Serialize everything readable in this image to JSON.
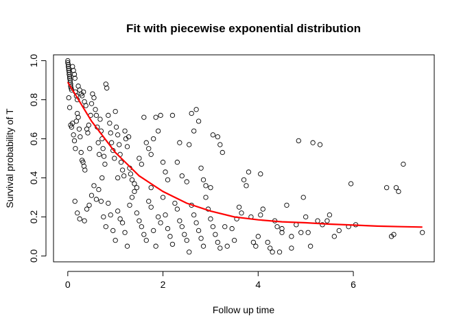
{
  "chart_data": {
    "type": "scatter",
    "title": "Fit with piecewise exponential distribution",
    "xlabel": "Follow up time",
    "ylabel": "Survival probability of T",
    "xlim": [
      -0.3,
      7.7
    ],
    "ylim": [
      -0.03,
      1.03
    ],
    "xticks": [
      0,
      2,
      4,
      6
    ],
    "yticks": [
      0.0,
      0.2,
      0.4,
      0.6,
      0.8,
      1.0
    ],
    "xtick_labels": [
      "0",
      "2",
      "4",
      "6"
    ],
    "ytick_labels": [
      "0.0",
      "0.2",
      "0.4",
      "0.6",
      "0.8",
      "1.0"
    ],
    "grid": false,
    "colors": {
      "points": "#000000",
      "fit_line": "#ff0000"
    },
    "series": [
      {
        "type": "scatter",
        "points": [
          [
            0.0,
            1.0
          ],
          [
            0.0,
            0.99
          ],
          [
            0.01,
            0.98
          ],
          [
            0.01,
            0.97
          ],
          [
            0.02,
            0.96
          ],
          [
            0.02,
            0.95
          ],
          [
            0.03,
            0.94
          ],
          [
            0.03,
            0.93
          ],
          [
            0.04,
            0.92
          ],
          [
            0.04,
            0.91
          ],
          [
            0.05,
            0.9
          ],
          [
            0.05,
            0.89
          ],
          [
            0.06,
            0.88
          ],
          [
            0.06,
            0.87
          ],
          [
            0.07,
            0.86
          ],
          [
            0.08,
            0.85
          ],
          [
            0.1,
            0.97
          ],
          [
            0.12,
            0.95
          ],
          [
            0.14,
            0.93
          ],
          [
            0.15,
            0.91
          ],
          [
            0.16,
            0.84
          ],
          [
            0.18,
            0.82
          ],
          [
            0.2,
            0.8
          ],
          [
            0.22,
            0.87
          ],
          [
            0.25,
            0.85
          ],
          [
            0.28,
            0.83
          ],
          [
            0.3,
            0.82
          ],
          [
            0.33,
            0.84
          ],
          [
            0.35,
            0.79
          ],
          [
            0.38,
            0.77
          ],
          [
            0.02,
            0.81
          ],
          [
            0.04,
            0.76
          ],
          [
            0.06,
            0.67
          ],
          [
            0.08,
            0.66
          ],
          [
            0.1,
            0.68
          ],
          [
            0.12,
            0.62
          ],
          [
            0.14,
            0.59
          ],
          [
            0.16,
            0.55
          ],
          [
            0.18,
            0.69
          ],
          [
            0.2,
            0.73
          ],
          [
            0.22,
            0.71
          ],
          [
            0.24,
            0.65
          ],
          [
            0.26,
            0.61
          ],
          [
            0.28,
            0.53
          ],
          [
            0.3,
            0.49
          ],
          [
            0.32,
            0.48
          ],
          [
            0.34,
            0.46
          ],
          [
            0.36,
            0.44
          ],
          [
            0.4,
            0.65
          ],
          [
            0.42,
            0.63
          ],
          [
            0.44,
            0.67
          ],
          [
            0.46,
            0.55
          ],
          [
            0.48,
            0.72
          ],
          [
            0.5,
            0.78
          ],
          [
            0.52,
            0.83
          ],
          [
            0.55,
            0.81
          ],
          [
            0.58,
            0.75
          ],
          [
            0.6,
            0.72
          ],
          [
            0.62,
            0.66
          ],
          [
            0.64,
            0.58
          ],
          [
            0.66,
            0.52
          ],
          [
            0.68,
            0.7
          ],
          [
            0.7,
            0.64
          ],
          [
            0.72,
            0.6
          ],
          [
            0.74,
            0.55
          ],
          [
            0.76,
            0.51
          ],
          [
            0.78,
            0.47
          ],
          [
            0.8,
            0.88
          ],
          [
            0.82,
            0.86
          ],
          [
            0.85,
            0.72
          ],
          [
            0.88,
            0.68
          ],
          [
            0.9,
            0.63
          ],
          [
            0.92,
            0.58
          ],
          [
            0.95,
            0.54
          ],
          [
            0.98,
            0.5
          ],
          [
            1.0,
            0.74
          ],
          [
            1.02,
            0.66
          ],
          [
            1.05,
            0.62
          ],
          [
            1.08,
            0.57
          ],
          [
            1.1,
            0.52
          ],
          [
            1.12,
            0.48
          ],
          [
            1.15,
            0.44
          ],
          [
            1.18,
            0.41
          ],
          [
            1.2,
            0.64
          ],
          [
            1.22,
            0.6
          ],
          [
            1.25,
            0.56
          ],
          [
            1.28,
            0.61
          ],
          [
            1.3,
            0.45
          ],
          [
            1.32,
            0.42
          ],
          [
            1.35,
            0.39
          ],
          [
            1.4,
            0.37
          ],
          [
            1.45,
            0.35
          ],
          [
            1.5,
            0.5
          ],
          [
            1.55,
            0.47
          ],
          [
            1.6,
            0.71
          ],
          [
            1.65,
            0.58
          ],
          [
            1.7,
            0.55
          ],
          [
            1.75,
            0.52
          ],
          [
            1.8,
            0.6
          ],
          [
            1.85,
            0.71
          ],
          [
            1.9,
            0.64
          ],
          [
            1.95,
            0.72
          ],
          [
            2.0,
            0.48
          ],
          [
            2.05,
            0.43
          ],
          [
            2.1,
            0.39
          ],
          [
            2.2,
            0.72
          ],
          [
            2.3,
            0.48
          ],
          [
            2.4,
            0.41
          ],
          [
            2.5,
            0.38
          ],
          [
            2.55,
            0.57
          ],
          [
            2.6,
            0.73
          ],
          [
            2.65,
            0.64
          ],
          [
            2.7,
            0.75
          ],
          [
            2.75,
            0.69
          ],
          [
            2.8,
            0.45
          ],
          [
            2.85,
            0.39
          ],
          [
            2.9,
            0.36
          ],
          [
            3.0,
            0.35
          ],
          [
            3.05,
            0.62
          ],
          [
            3.15,
            0.61
          ],
          [
            3.25,
            0.53
          ],
          [
            0.15,
            0.28
          ],
          [
            0.2,
            0.22
          ],
          [
            0.25,
            0.19
          ],
          [
            0.35,
            0.18
          ],
          [
            0.4,
            0.24
          ],
          [
            0.45,
            0.26
          ],
          [
            0.5,
            0.31
          ],
          [
            0.55,
            0.36
          ],
          [
            0.6,
            0.29
          ],
          [
            0.65,
            0.34
          ],
          [
            0.7,
            0.28
          ],
          [
            0.75,
            0.2
          ],
          [
            0.8,
            0.15
          ],
          [
            0.85,
            0.27
          ],
          [
            0.9,
            0.21
          ],
          [
            0.95,
            0.13
          ],
          [
            1.0,
            0.08
          ],
          [
            1.05,
            0.23
          ],
          [
            1.1,
            0.19
          ],
          [
            1.15,
            0.17
          ],
          [
            1.2,
            0.12
          ],
          [
            1.25,
            0.05
          ],
          [
            1.3,
            0.26
          ],
          [
            1.35,
            0.3
          ],
          [
            1.4,
            0.33
          ],
          [
            1.45,
            0.22
          ],
          [
            1.5,
            0.18
          ],
          [
            1.55,
            0.15
          ],
          [
            1.6,
            0.11
          ],
          [
            1.65,
            0.08
          ],
          [
            1.7,
            0.28
          ],
          [
            1.75,
            0.25
          ],
          [
            1.8,
            0.13
          ],
          [
            1.85,
            0.05
          ],
          [
            1.9,
            0.2
          ],
          [
            1.95,
            0.17
          ],
          [
            2.0,
            0.3
          ],
          [
            2.05,
            0.21
          ],
          [
            2.1,
            0.14
          ],
          [
            2.15,
            0.1
          ],
          [
            2.2,
            0.06
          ],
          [
            2.25,
            0.27
          ],
          [
            2.3,
            0.24
          ],
          [
            2.35,
            0.18
          ],
          [
            2.4,
            0.15
          ],
          [
            2.45,
            0.11
          ],
          [
            2.5,
            0.08
          ],
          [
            2.55,
            0.02
          ],
          [
            2.6,
            0.26
          ],
          [
            2.65,
            0.21
          ],
          [
            2.7,
            0.17
          ],
          [
            2.75,
            0.13
          ],
          [
            2.8,
            0.09
          ],
          [
            2.85,
            0.05
          ],
          [
            2.9,
            0.3
          ],
          [
            2.95,
            0.24
          ],
          [
            3.0,
            0.19
          ],
          [
            3.05,
            0.15
          ],
          [
            3.1,
            0.11
          ],
          [
            3.15,
            0.07
          ],
          [
            3.2,
            0.04
          ],
          [
            3.3,
            0.15
          ],
          [
            3.45,
            0.14
          ],
          [
            3.5,
            0.08
          ],
          [
            3.6,
            0.25
          ],
          [
            3.65,
            0.22
          ],
          [
            3.7,
            0.39
          ],
          [
            3.75,
            0.36
          ],
          [
            3.8,
            0.43
          ],
          [
            3.85,
            0.2
          ],
          [
            3.9,
            0.07
          ],
          [
            3.95,
            0.05
          ],
          [
            4.0,
            0.1
          ],
          [
            4.05,
            0.21
          ],
          [
            4.1,
            0.24
          ],
          [
            4.2,
            0.07
          ],
          [
            4.25,
            0.04
          ],
          [
            4.3,
            0.02
          ],
          [
            4.35,
            0.18
          ],
          [
            4.4,
            0.15
          ],
          [
            4.45,
            0.02
          ],
          [
            4.5,
            0.12
          ],
          [
            4.6,
            0.26
          ],
          [
            4.7,
            0.1
          ],
          [
            4.8,
            0.16
          ],
          [
            4.85,
            0.59
          ],
          [
            4.9,
            0.12
          ],
          [
            4.95,
            0.3
          ],
          [
            5.0,
            0.2
          ],
          [
            5.05,
            0.12
          ],
          [
            5.1,
            0.05
          ],
          [
            5.15,
            0.58
          ],
          [
            5.3,
            0.57
          ],
          [
            5.35,
            0.16
          ],
          [
            5.45,
            0.18
          ],
          [
            5.5,
            0.21
          ],
          [
            5.6,
            0.1
          ],
          [
            5.7,
            0.13
          ],
          [
            5.9,
            0.15
          ],
          [
            5.95,
            0.37
          ],
          [
            6.05,
            0.16
          ],
          [
            6.7,
            0.35
          ],
          [
            6.8,
            0.1
          ],
          [
            6.85,
            0.11
          ],
          [
            6.9,
            0.35
          ],
          [
            6.95,
            0.33
          ],
          [
            7.05,
            0.47
          ],
          [
            7.45,
            0.12
          ],
          [
            3.2,
            0.57
          ],
          [
            4.05,
            0.42
          ],
          [
            4.5,
            0.14
          ],
          [
            4.7,
            0.04
          ],
          [
            5.25,
            0.18
          ],
          [
            3.55,
            0.19
          ],
          [
            3.35,
            0.05
          ],
          [
            2.35,
            0.58
          ],
          [
            1.75,
            0.35
          ],
          [
            1.05,
            0.4
          ],
          [
            0.72,
            0.4
          ]
        ]
      },
      {
        "type": "line",
        "points": [
          [
            0.0,
            0.89
          ],
          [
            0.25,
            0.79
          ],
          [
            0.5,
            0.69
          ],
          [
            0.75,
            0.61
          ],
          [
            1.0,
            0.53
          ],
          [
            1.25,
            0.47
          ],
          [
            1.5,
            0.41
          ],
          [
            1.75,
            0.37
          ],
          [
            2.0,
            0.33
          ],
          [
            2.5,
            0.27
          ],
          [
            3.0,
            0.23
          ],
          [
            3.5,
            0.2
          ],
          [
            4.0,
            0.185
          ],
          [
            4.5,
            0.175
          ],
          [
            5.0,
            0.17
          ],
          [
            5.5,
            0.163
          ],
          [
            6.0,
            0.158
          ],
          [
            6.5,
            0.153
          ],
          [
            7.0,
            0.15
          ],
          [
            7.45,
            0.148
          ]
        ]
      }
    ]
  }
}
